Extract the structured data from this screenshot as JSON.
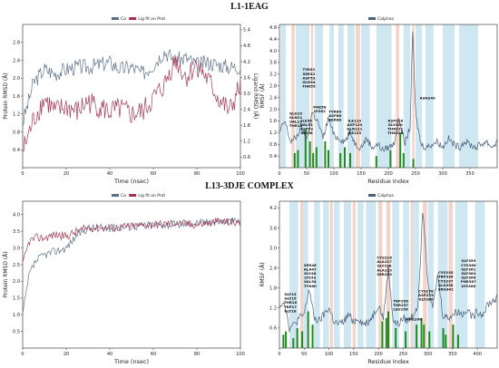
{
  "titles": {
    "top": "L1-1EAG",
    "bottom": "L13-3DJE COMPLEX"
  },
  "colors": {
    "protein": "#5a6f86",
    "ligand": "#a3314e",
    "rmsf_line": "#4a5f7a",
    "contact_green": "#1f8a1f",
    "band_blue": "#c6e3ef",
    "band_pink": "#f2cfc4"
  },
  "chart_data": [
    {
      "id": "top-rmsd",
      "type": "line",
      "title": "",
      "legend": [
        "Cα",
        "Lig fit on Prot"
      ],
      "legend_position": "top-center",
      "xlabel": "Time (nsec)",
      "ylabel": "Protein RMSD (Å)",
      "y2label": "Ligand RMSD (Å)",
      "xlim": [
        0,
        100
      ],
      "ylim": [
        0.0,
        3.2
      ],
      "y2lim": [
        0.2,
        5.6
      ],
      "xticks": [
        "0",
        "20",
        "40",
        "60",
        "80",
        "100"
      ],
      "yticks": [
        "0.4",
        "0.8",
        "1.2",
        "1.6",
        "2.0",
        "2.4",
        "2.8"
      ],
      "y2ticks": [
        "0.6",
        "1.2",
        "1.8",
        "2.4",
        "3.0",
        "3.6",
        "4.2",
        "4.8",
        "5.4"
      ],
      "series": [
        {
          "name": "Cα",
          "color": "#5a6f86",
          "axis": "left",
          "x": [
            0,
            5,
            10,
            15,
            20,
            25,
            30,
            35,
            40,
            45,
            50,
            55,
            60,
            65,
            70,
            75,
            80,
            85,
            90,
            95,
            100
          ],
          "y": [
            1.0,
            1.9,
            2.2,
            2.1,
            2.2,
            2.25,
            2.25,
            2.3,
            2.35,
            2.2,
            2.25,
            2.1,
            2.3,
            2.6,
            2.4,
            2.45,
            2.3,
            2.35,
            2.3,
            2.25,
            2.25
          ]
        },
        {
          "name": "Lig fit on Prot",
          "color": "#a3314e",
          "axis": "right",
          "x": [
            0,
            5,
            10,
            15,
            20,
            25,
            30,
            35,
            40,
            45,
            50,
            55,
            60,
            65,
            70,
            75,
            80,
            85,
            90,
            95,
            100
          ],
          "y": [
            0.8,
            2.0,
            2.8,
            2.3,
            2.5,
            2.3,
            2.7,
            2.5,
            2.3,
            2.4,
            2.2,
            2.3,
            2.8,
            3.3,
            4.3,
            3.6,
            4.1,
            3.5,
            2.8,
            2.3,
            3.3
          ]
        }
      ]
    },
    {
      "id": "top-rmsf",
      "type": "line",
      "title": "",
      "legend": [
        "Calphas"
      ],
      "legend_position": "top-center",
      "xlabel": "Residue Index",
      "ylabel": "RMSF (Å)",
      "xlim": [
        0,
        400
      ],
      "ylim": [
        0.0,
        4.9
      ],
      "xticks": [
        "0",
        "50",
        "100",
        "150",
        "200",
        "250",
        "300",
        "350"
      ],
      "yticks": [
        "0.4",
        "0.8",
        "1.2",
        "1.6",
        "2.0",
        "2.4",
        "2.8",
        "3.2",
        "3.6",
        "4.0",
        "4.4",
        "4.8"
      ],
      "x": [
        0,
        10,
        20,
        30,
        40,
        50,
        60,
        70,
        80,
        90,
        100,
        110,
        120,
        130,
        140,
        150,
        160,
        170,
        180,
        190,
        200,
        210,
        220,
        230,
        240,
        245,
        250,
        260,
        270,
        280,
        290,
        300,
        310,
        320,
        330,
        340,
        350,
        360,
        370,
        380,
        390,
        400
      ],
      "y": [
        1.2,
        1.6,
        0.9,
        1.0,
        1.4,
        0.9,
        1.9,
        1.6,
        1.0,
        1.7,
        1.1,
        1.0,
        0.9,
        1.2,
        0.8,
        0.7,
        1.0,
        0.7,
        0.8,
        0.6,
        0.7,
        0.8,
        1.7,
        0.8,
        1.4,
        4.8,
        1.8,
        0.8,
        0.7,
        0.8,
        0.9,
        0.7,
        1.0,
        0.8,
        0.7,
        0.9,
        0.8,
        0.7,
        0.8,
        0.9,
        0.7,
        0.9
      ],
      "bands_blue": [
        [
          2,
          12
        ],
        [
          30,
          55
        ],
        [
          65,
          80
        ],
        [
          92,
          100
        ],
        [
          108,
          118
        ],
        [
          125,
          138
        ],
        [
          150,
          166
        ],
        [
          178,
          206
        ],
        [
          228,
          240
        ],
        [
          250,
          262
        ],
        [
          268,
          283
        ],
        [
          300,
          322
        ],
        [
          330,
          365
        ]
      ],
      "bands_pink": [
        [
          22,
          28
        ],
        [
          58,
          62
        ],
        [
          140,
          148
        ],
        [
          214,
          220
        ],
        [
          244,
          248
        ]
      ],
      "contacts": [
        [
          28,
          0.5
        ],
        [
          34,
          0.6
        ],
        [
          48,
          1.3
        ],
        [
          56,
          0.9
        ],
        [
          62,
          0.5
        ],
        [
          68,
          0.7
        ],
        [
          84,
          0.9
        ],
        [
          90,
          0.6
        ],
        [
          112,
          0.5
        ],
        [
          120,
          0.7
        ],
        [
          130,
          0.5
        ],
        [
          178,
          0.4
        ],
        [
          204,
          0.6
        ],
        [
          222,
          1.2
        ],
        [
          228,
          0.5
        ],
        [
          246,
          0.3
        ]
      ],
      "annotations": [
        {
          "x": 30,
          "y": 1.25,
          "lines": [
            "GLU10",
            "GLN11",
            "VAL12",
            "THR13"
          ]
        },
        {
          "x": 54,
          "y": 2.6,
          "lines": [
            "TYR51",
            "SER52",
            "ASP53",
            "GLN54",
            "THR55"
          ]
        },
        {
          "x": 50,
          "y": 1.0,
          "lines": [
            "ILE50",
            "VAL51",
            "ASP52",
            "GLY56"
          ]
        },
        {
          "x": 74,
          "y": 1.75,
          "lines": [
            "PHE58",
            "LYS62"
          ]
        },
        {
          "x": 102,
          "y": 1.45,
          "lines": [
            "TYR84",
            "ASP86",
            "SER88"
          ]
        },
        {
          "x": 138,
          "y": 1.0,
          "lines": [
            "ILE119",
            "ASP120",
            "GLN121",
            "ILE123"
          ]
        },
        {
          "x": 213,
          "y": 1.0,
          "lines": [
            "ASP218",
            "GLY220",
            "THR221",
            "THR223"
          ]
        },
        {
          "x": 272,
          "y": 2.2,
          "lines": [
            "ASN249"
          ]
        }
      ]
    },
    {
      "id": "bottom-rmsd",
      "type": "line",
      "title": "",
      "legend": [
        "Cα",
        "Lig fit on Prot"
      ],
      "legend_position": "top-center",
      "xlabel": "Time (nsec)",
      "ylabel": "Protein RMSD (Å)",
      "y2label": "",
      "xlim": [
        0,
        100
      ],
      "ylim": [
        0.0,
        4.4
      ],
      "xticks": [
        "0",
        "20",
        "40",
        "60",
        "80",
        "100"
      ],
      "yticks": [
        "0.5",
        "1.0",
        "1.5",
        "2.0",
        "2.5",
        "3.0",
        "3.5",
        "4.0"
      ],
      "series": [
        {
          "name": "Cα",
          "color": "#5a6f86",
          "axis": "left",
          "x": [
            0,
            3,
            6,
            10,
            15,
            20,
            25,
            30,
            40,
            50,
            60,
            70,
            80,
            90,
            100
          ],
          "y": [
            1.0,
            2.2,
            2.6,
            2.8,
            2.9,
            3.0,
            3.4,
            3.6,
            3.6,
            3.65,
            3.7,
            3.7,
            3.75,
            3.8,
            3.8
          ]
        },
        {
          "name": "Lig fit on Prot",
          "color": "#a3314e",
          "axis": "left",
          "x": [
            0,
            3,
            6,
            10,
            15,
            20,
            25,
            30,
            40,
            50,
            60,
            70,
            80,
            90,
            100
          ],
          "y": [
            2.5,
            3.2,
            3.3,
            3.3,
            3.4,
            3.35,
            3.5,
            3.6,
            3.6,
            3.65,
            3.7,
            3.75,
            3.7,
            3.8,
            3.75
          ]
        }
      ]
    },
    {
      "id": "bottom-rmsf",
      "type": "line",
      "title": "",
      "legend": [
        "Calphas"
      ],
      "legend_position": "top-center",
      "xlabel": "Residue Index",
      "ylabel": "RMSF (Å)",
      "xlim": [
        0,
        440
      ],
      "ylim": [
        0.0,
        4.4
      ],
      "xticks": [
        "0",
        "50",
        "100",
        "150",
        "200",
        "250",
        "300",
        "350",
        "400"
      ],
      "yticks": [
        "0.6",
        "1.2",
        "1.8",
        "2.4",
        "3.0",
        "3.6",
        "4.2"
      ],
      "x": [
        0,
        10,
        20,
        30,
        40,
        50,
        60,
        70,
        80,
        90,
        100,
        110,
        120,
        130,
        140,
        150,
        160,
        170,
        180,
        190,
        200,
        210,
        220,
        230,
        240,
        250,
        260,
        270,
        280,
        290,
        300,
        310,
        320,
        330,
        340,
        350,
        360,
        370,
        380,
        390,
        400,
        410,
        420,
        430,
        440
      ],
      "y": [
        1.3,
        1.4,
        0.6,
        0.7,
        0.9,
        1.0,
        1.8,
        0.9,
        0.8,
        1.0,
        1.2,
        0.8,
        0.7,
        0.8,
        1.0,
        0.8,
        0.9,
        0.7,
        0.8,
        1.0,
        1.3,
        0.9,
        2.4,
        0.8,
        0.7,
        0.9,
        0.8,
        1.0,
        1.3,
        4.2,
        2.0,
        1.2,
        2.2,
        1.0,
        0.9,
        1.0,
        1.1,
        1.0,
        1.2,
        0.9,
        1.1,
        1.0,
        1.3,
        1.4,
        1.5
      ],
      "bands_blue": [
        [
          20,
          38
        ],
        [
          48,
          58
        ],
        [
          70,
          82
        ],
        [
          88,
          100
        ],
        [
          110,
          122
        ],
        [
          130,
          145
        ],
        [
          158,
          170
        ],
        [
          175,
          195
        ],
        [
          228,
          242
        ],
        [
          250,
          262
        ],
        [
          270,
          282
        ],
        [
          300,
          312
        ],
        [
          320,
          340
        ],
        [
          355,
          380
        ],
        [
          395,
          415
        ]
      ],
      "bands_pink": [
        [
          42,
          48
        ],
        [
          102,
          108
        ],
        [
          148,
          154
        ],
        [
          200,
          208
        ],
        [
          216,
          224
        ],
        [
          265,
          270
        ],
        [
          290,
          298
        ],
        [
          342,
          350
        ]
      ],
      "contacts": [
        [
          8,
          0.4
        ],
        [
          13,
          0.5
        ],
        [
          28,
          0.3
        ],
        [
          36,
          0.6
        ],
        [
          46,
          0.5
        ],
        [
          58,
          1.1
        ],
        [
          67,
          0.7
        ],
        [
          208,
          0.8
        ],
        [
          216,
          0.9
        ],
        [
          220,
          1.1
        ],
        [
          235,
          0.6
        ],
        [
          255,
          0.5
        ],
        [
          277,
          0.7
        ],
        [
          287,
          0.9
        ],
        [
          292,
          0.7
        ],
        [
          303,
          0.5
        ],
        [
          331,
          0.6
        ],
        [
          336,
          0.4
        ],
        [
          351,
          0.7
        ],
        [
          361,
          0.4
        ]
      ],
      "annotations": [
        {
          "x": 22,
          "y": 0.95,
          "lines": [
            "GLY13",
            "GLY15",
            "THR16",
            "TRP17",
            "GLY18"
          ]
        },
        {
          "x": 62,
          "y": 1.7,
          "lines": [
            "SER46",
            "ALA47",
            "GLY48",
            "LYS53",
            "VAL54",
            "TYR60"
          ]
        },
        {
          "x": 212,
          "y": 2.05,
          "lines": [
            "CYS216",
            "ALA217",
            "GLY218",
            "ALA219",
            "SER220"
          ]
        },
        {
          "x": 245,
          "y": 1.0,
          "lines": [
            "TRP256",
            "THR257",
            "LEU258"
          ]
        },
        {
          "x": 272,
          "y": 0.7,
          "lines": [
            "PHE266"
          ]
        },
        {
          "x": 296,
          "y": 1.3,
          "lines": [
            "CYS278",
            "ASP279",
            "GLY280"
          ]
        },
        {
          "x": 336,
          "y": 1.6,
          "lines": [
            "CYS335",
            "TRP336",
            "CYS337",
            "ALA338",
            "SRG342"
          ]
        },
        {
          "x": 382,
          "y": 1.7,
          "lines": [
            "GLY359",
            "CYS360",
            "GLY361",
            "GLY364",
            "GLY366",
            "PHE367",
            "LYS368"
          ]
        }
      ]
    }
  ]
}
